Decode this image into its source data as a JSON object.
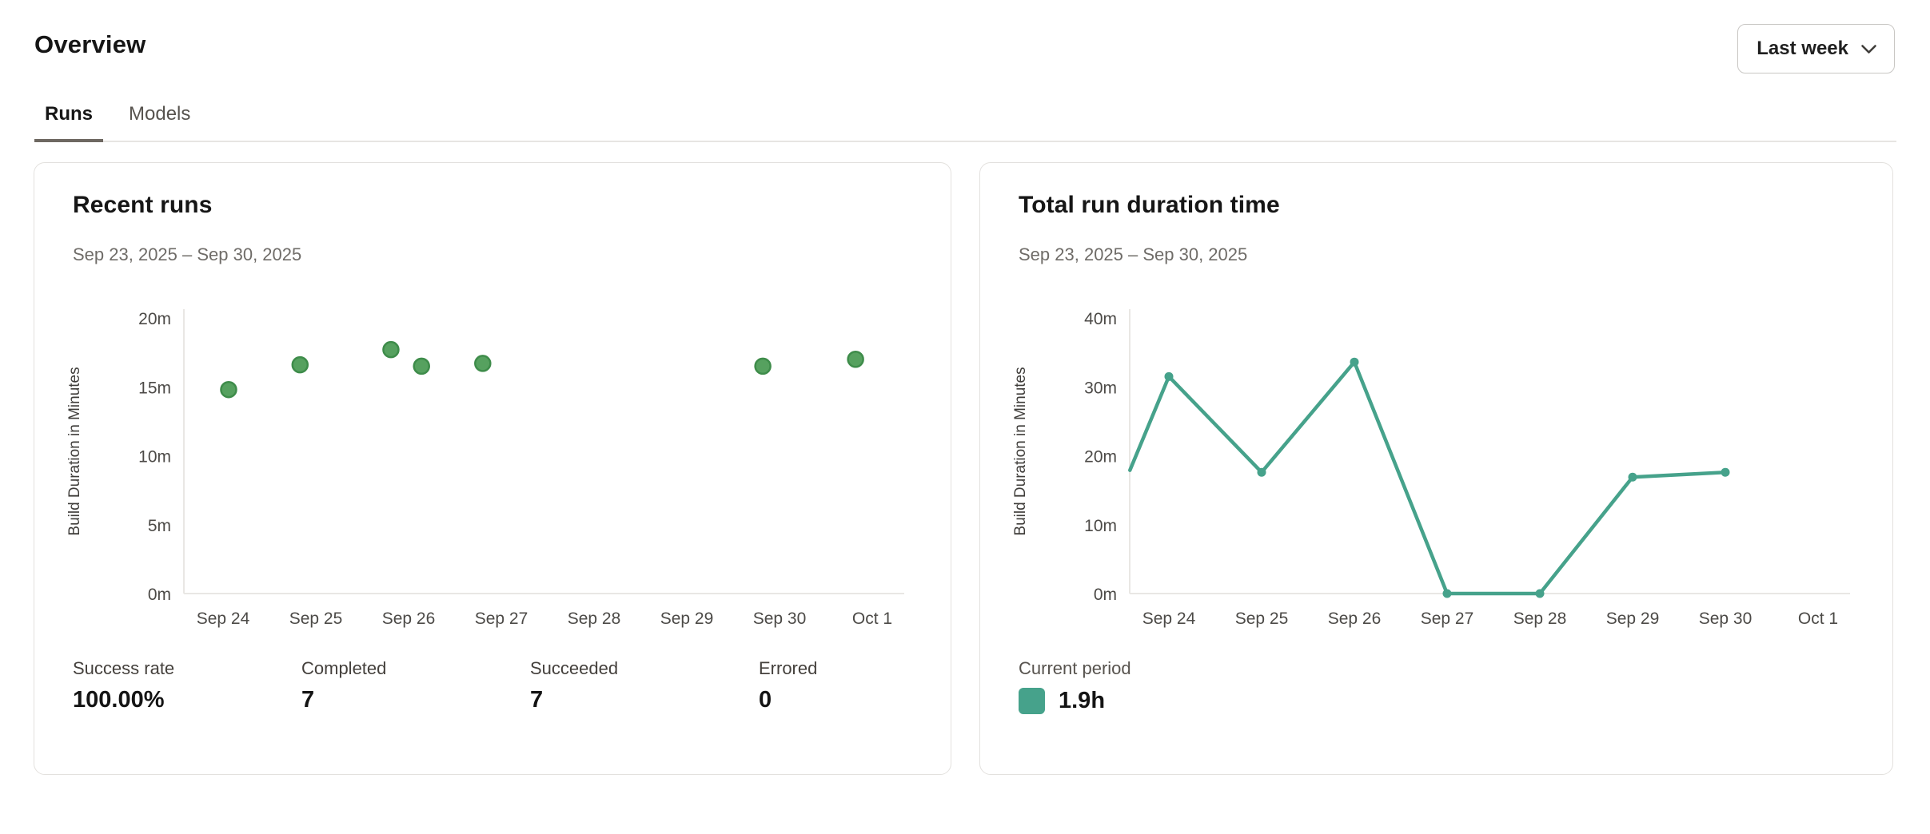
{
  "header": {
    "title": "Overview",
    "period_selector": {
      "label": "Last week"
    }
  },
  "tabs": [
    {
      "label": "Runs",
      "active": true
    },
    {
      "label": "Models",
      "active": false
    }
  ],
  "cards": {
    "recent_runs": {
      "title": "Recent runs",
      "date_range": "Sep 23, 2025 – Sep 30, 2025",
      "stats": [
        {
          "label": "Success rate",
          "value": "100.00%"
        },
        {
          "label": "Completed",
          "value": "7"
        },
        {
          "label": "Succeeded",
          "value": "7"
        },
        {
          "label": "Errored",
          "value": "0"
        }
      ]
    },
    "total_run_duration": {
      "title": "Total run duration time",
      "date_range": "Sep 23, 2025 – Sep 30, 2025",
      "legend": {
        "label": "Current period",
        "value": "1.9h",
        "color": "#46a28b"
      }
    }
  },
  "chart_data": [
    {
      "type": "scatter",
      "title": "Recent runs",
      "xlabel": "",
      "ylabel": "Build Duration in Minutes",
      "x_unit": "days since Sep 23, 2025 (Sep 24 = 1)",
      "x_ticks": [
        "Sep 24",
        "Sep 25",
        "Sep 26",
        "Sep 27",
        "Sep 28",
        "Sep 29",
        "Sep 30",
        "Oct 1"
      ],
      "y_ticks": [
        "0m",
        "5m",
        "10m",
        "15m",
        "20m"
      ],
      "ylim": [
        0,
        20
      ],
      "grid": false,
      "points": [
        [
          1.06,
          14.8
        ],
        [
          1.83,
          16.6
        ],
        [
          2.81,
          17.7
        ],
        [
          3.14,
          16.5
        ],
        [
          3.8,
          16.7
        ],
        [
          6.82,
          16.5
        ],
        [
          7.82,
          17.0
        ]
      ],
      "color": "#56a15f",
      "stroke": "#3e8c4a"
    },
    {
      "type": "line",
      "title": "Total run duration time",
      "xlabel": "",
      "ylabel": "Build Duration in Minutes",
      "x_unit": "days since Sep 23, 2025 (Sep 24 = 1)",
      "x_ticks": [
        "Sep 24",
        "Sep 25",
        "Sep 26",
        "Sep 27",
        "Sep 28",
        "Sep 29",
        "Sep 30",
        "Oct 1"
      ],
      "y_ticks": [
        "0m",
        "10m",
        "20m",
        "30m",
        "40m"
      ],
      "ylim": [
        0,
        40
      ],
      "grid": false,
      "legend_position": "bottom-left",
      "points": [
        [
          0.58,
          17.9
        ],
        [
          1,
          31.5
        ],
        [
          2,
          17.6
        ],
        [
          3,
          33.6
        ],
        [
          4,
          0
        ],
        [
          5,
          0
        ],
        [
          6,
          16.9
        ],
        [
          7,
          17.6
        ]
      ],
      "color": "#46a28b"
    }
  ]
}
